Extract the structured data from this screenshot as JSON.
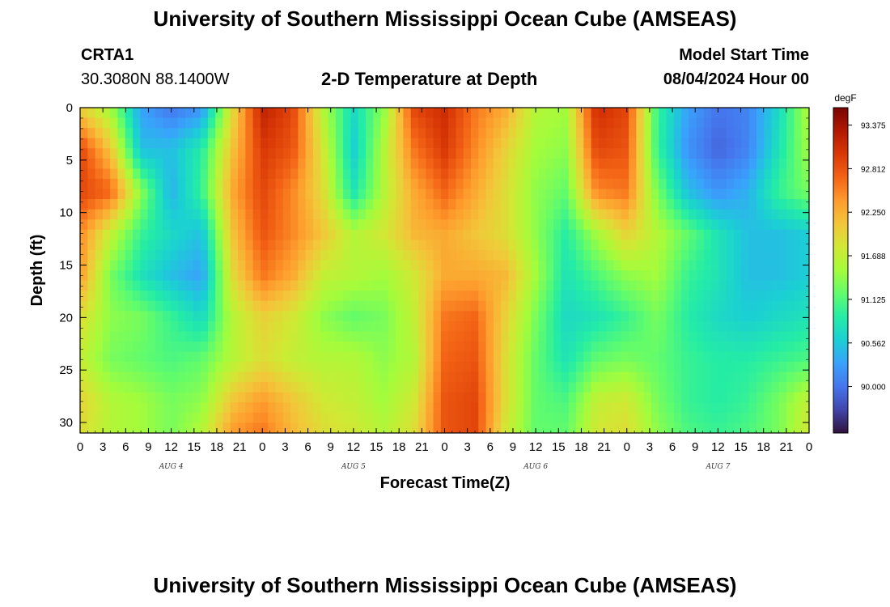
{
  "header": {
    "title_top": "University of Southern Mississippi Ocean Cube (AMSEAS)",
    "title_bottom": "University of Southern Mississippi Ocean Cube (AMSEAS)",
    "station": "CRTA1",
    "coords": "30.3080N  88.1400W",
    "model_label": "Model Start Time",
    "model_time": "08/04/2024 Hour 00"
  },
  "chart_data": {
    "type": "heatmap",
    "title": "2-D Temperature at Depth",
    "xlabel": "Forecast Time(Z)",
    "ylabel": "Depth (ft)",
    "x_hours_range": [
      0,
      96
    ],
    "ylim": [
      0,
      31
    ],
    "y_ticks": [
      0,
      5,
      10,
      15,
      20,
      25,
      30
    ],
    "x_tick_labels": [
      "0",
      "3",
      "6",
      "9",
      "12",
      "15",
      "18",
      "21",
      "0",
      "3",
      "6",
      "9",
      "12",
      "15",
      "18",
      "21",
      "0",
      "3",
      "6",
      "9",
      "12",
      "15",
      "18",
      "21",
      "0",
      "3",
      "6",
      "9",
      "12",
      "15",
      "18",
      "21",
      "0"
    ],
    "date_labels": [
      "AUG 4",
      "AUG 5",
      "AUG 6",
      "AUG 7"
    ],
    "colorbar": {
      "unit": "degF",
      "ticks": [
        "93.375",
        "92.812",
        "92.250",
        "91.688",
        "91.125",
        "90.562",
        "90.000"
      ],
      "colors": [
        "#30123b",
        "#4145ab",
        "#4675ed",
        "#39a2fc",
        "#1bcfd4",
        "#24eca6",
        "#61fc6c",
        "#a4fc3b",
        "#d1e834",
        "#f3c63a",
        "#fe9b2d",
        "#f36315",
        "#d93806",
        "#b11901",
        "#7a0402"
      ],
      "vmin": 89.4,
      "vmax": 93.6
    },
    "grid": false,
    "values_degF": {
      "hours": [
        0,
        4,
        8,
        12,
        16,
        20,
        24,
        28,
        32,
        36,
        40,
        44,
        48,
        52,
        56,
        60,
        64,
        68,
        72,
        76,
        80,
        84,
        88,
        92,
        96
      ],
      "depths_ft": [
        0,
        4,
        8,
        12,
        16,
        20,
        24,
        28,
        31
      ],
      "rows": [
        [
          92.0,
          91.5,
          90.3,
          90.0,
          90.2,
          91.9,
          93.2,
          92.9,
          91.6,
          90.7,
          91.4,
          92.9,
          93.1,
          92.6,
          92.3,
          91.6,
          91.5,
          93.1,
          92.9,
          91.0,
          90.3,
          90.0,
          90.1,
          90.7,
          91.6
        ],
        [
          92.9,
          92.1,
          90.5,
          90.5,
          90.9,
          92.1,
          93.0,
          92.8,
          91.8,
          90.6,
          91.6,
          92.6,
          93.0,
          92.5,
          92.0,
          91.5,
          91.4,
          92.9,
          92.8,
          91.0,
          90.2,
          89.9,
          90.1,
          90.8,
          91.5
        ],
        [
          92.9,
          92.7,
          91.4,
          90.4,
          91.0,
          92.3,
          92.9,
          92.5,
          91.9,
          90.8,
          91.6,
          92.3,
          92.7,
          92.3,
          91.9,
          91.4,
          91.2,
          92.5,
          92.6,
          91.3,
          90.5,
          90.2,
          90.4,
          91.0,
          91.3
        ],
        [
          92.5,
          91.7,
          91.0,
          90.7,
          90.5,
          92.1,
          92.8,
          92.5,
          92.1,
          91.6,
          91.8,
          92.2,
          92.3,
          92.1,
          91.9,
          91.4,
          90.9,
          91.5,
          92.0,
          91.6,
          91.2,
          90.8,
          90.5,
          90.5,
          90.6
        ],
        [
          92.4,
          91.3,
          90.8,
          90.5,
          90.3,
          91.9,
          92.6,
          92.3,
          91.7,
          91.6,
          91.5,
          91.8,
          92.3,
          92.3,
          92.2,
          91.5,
          90.8,
          91.1,
          91.4,
          91.5,
          91.0,
          90.8,
          90.5,
          90.5,
          90.6
        ],
        [
          91.9,
          91.4,
          91.3,
          91.0,
          90.7,
          91.6,
          92.0,
          91.8,
          91.4,
          91.2,
          91.3,
          91.7,
          92.6,
          92.7,
          92.0,
          91.3,
          90.7,
          90.8,
          91.0,
          91.3,
          90.9,
          90.7,
          90.6,
          90.7,
          90.8
        ],
        [
          91.7,
          91.3,
          91.2,
          91.1,
          91.2,
          91.6,
          91.9,
          91.7,
          91.6,
          91.6,
          91.4,
          91.6,
          92.7,
          92.8,
          91.9,
          91.2,
          90.8,
          91.2,
          91.3,
          91.2,
          91.0,
          90.9,
          90.9,
          91.0,
          91.1
        ],
        [
          92.0,
          91.6,
          91.5,
          91.3,
          91.4,
          92.1,
          92.4,
          92.1,
          91.8,
          91.7,
          91.5,
          91.8,
          92.8,
          92.9,
          91.9,
          91.2,
          91.1,
          91.7,
          91.8,
          91.3,
          91.0,
          90.9,
          91.0,
          91.3,
          91.7
        ],
        [
          91.9,
          91.6,
          91.5,
          91.3,
          91.6,
          92.4,
          92.6,
          92.2,
          91.9,
          91.8,
          91.6,
          91.9,
          92.8,
          92.9,
          91.8,
          91.2,
          91.2,
          91.8,
          91.9,
          91.4,
          91.1,
          91.0,
          91.1,
          91.3,
          91.8
        ]
      ]
    }
  }
}
